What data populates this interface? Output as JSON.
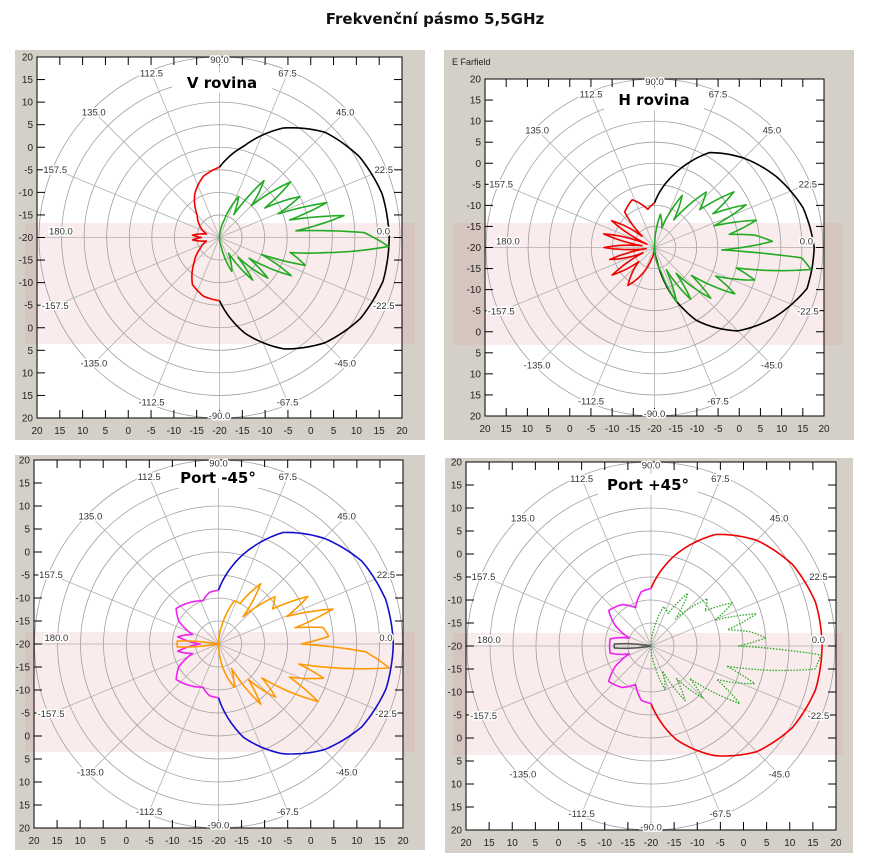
{
  "title": "Frekvenční pásmo 5,5GHz",
  "axis_ticks": [
    "20",
    "15",
    "10",
    "5",
    "0",
    "-5",
    "-10",
    "-15",
    "-20",
    "-15",
    "-10",
    "-5",
    "0",
    "5",
    "10",
    "15",
    "20"
  ],
  "angle_labels": [
    {
      "angle": 90,
      "text": "90.0"
    },
    {
      "angle": 67.5,
      "text": "67.5"
    },
    {
      "angle": 45,
      "text": "45.0"
    },
    {
      "angle": 22.5,
      "text": "22.5"
    },
    {
      "angle": 0,
      "text": "0.0"
    },
    {
      "angle": -22.5,
      "text": "-22.5"
    },
    {
      "angle": -45,
      "text": "-45.0"
    },
    {
      "angle": -67.5,
      "text": "-67.5"
    },
    {
      "angle": -90,
      "text": "-90.0"
    },
    {
      "angle": -112.5,
      "text": "-112.5"
    },
    {
      "angle": -135,
      "text": "-135.0"
    },
    {
      "angle": -157.5,
      "text": "-157.5"
    },
    {
      "angle": 180,
      "text": "180.0"
    },
    {
      "angle": 157.5,
      "text": "157.5"
    },
    {
      "angle": 135,
      "text": "135.0"
    },
    {
      "angle": 112.5,
      "text": "112.5"
    }
  ],
  "chart_data": [
    {
      "type": "polar",
      "title": "V rovina",
      "frame_label": "",
      "rlim": [
        -20,
        20
      ],
      "grid": true,
      "series": [
        {
          "color": "#000000",
          "style": "solid",
          "points": [
            [
              -90,
              -6
            ],
            [
              -75,
              2
            ],
            [
              -60,
              8.5
            ],
            [
              -45,
              13
            ],
            [
              -30,
              16
            ],
            [
              -15,
              17.5
            ],
            [
              0,
              17.6
            ],
            [
              15,
              17.3
            ],
            [
              30,
              15.8
            ],
            [
              45,
              13
            ],
            [
              60,
              8
            ],
            [
              75,
              1
            ],
            [
              90,
              -4.4
            ]
          ]
        },
        {
          "color": "#ee0000",
          "style": "solid",
          "points": [
            [
              90,
              -4.4
            ],
            [
              105,
              -6
            ],
            [
              120,
              -9
            ],
            [
              135,
              -13
            ],
            [
              150,
              -15
            ],
            [
              165,
              -17
            ],
            [
              175,
              -14
            ],
            [
              180,
              -16
            ],
            [
              185,
              -14
            ],
            [
              195,
              -17
            ],
            [
              210,
              -15
            ],
            [
              225,
              -12
            ],
            [
              240,
              -8
            ],
            [
              255,
              -6.5
            ],
            [
              270,
              -6
            ]
          ]
        },
        {
          "color": "#22aa22",
          "style": "solid",
          "points": [
            [
              -90,
              -20
            ],
            [
              -80,
              -18
            ],
            [
              -70,
              -12
            ],
            [
              -60,
              -16
            ],
            [
              -52,
              -8
            ],
            [
              -47,
              -14
            ],
            [
              -40,
              -6
            ],
            [
              -35,
              -12
            ],
            [
              -28,
              -2
            ],
            [
              -22,
              -10
            ],
            [
              -18,
              0
            ],
            [
              -12,
              -4
            ],
            [
              -8,
              4
            ],
            [
              -3,
              17.5
            ],
            [
              2,
              12
            ],
            [
              5,
              -3
            ],
            [
              10,
              8
            ],
            [
              14,
              -4
            ],
            [
              18,
              5
            ],
            [
              22,
              -6
            ],
            [
              27,
              0
            ],
            [
              33,
              -8
            ],
            [
              38,
              0
            ],
            [
              45,
              -10
            ],
            [
              52,
              -4
            ],
            [
              58,
              -14
            ],
            [
              65,
              -10
            ],
            [
              75,
              -16
            ],
            [
              85,
              -19
            ],
            [
              90,
              -20
            ]
          ]
        }
      ]
    },
    {
      "type": "polar",
      "title": "H rovina",
      "frame_label": "E Farfield",
      "rlim": [
        -20,
        20
      ],
      "grid": true,
      "series": [
        {
          "color": "#000000",
          "style": "solid",
          "points": [
            [
              90,
              -9.4
            ],
            [
              75,
              -2
            ],
            [
              60,
              6
            ],
            [
              45,
              10
            ],
            [
              30,
              13.5
            ],
            [
              15,
              16.5
            ],
            [
              0,
              17.9
            ],
            [
              -15,
              17.5
            ],
            [
              -30,
              13
            ],
            [
              -45,
              8
            ],
            [
              -60,
              0
            ],
            [
              -70,
              -8
            ],
            [
              -80,
              -17
            ],
            [
              -90,
              -20
            ]
          ]
        },
        {
          "color": "#ee0000",
          "style": "solid",
          "points": [
            [
              90,
              -9.4
            ],
            [
              100,
              -10.8
            ],
            [
              115,
              -7.5
            ],
            [
              130,
              -9
            ],
            [
              138,
              -16
            ],
            [
              148,
              -8
            ],
            [
              156,
              -18
            ],
            [
              165,
              -7.5
            ],
            [
              172,
              -17
            ],
            [
              180,
              -8
            ],
            [
              188,
              -18
            ],
            [
              195,
              -9
            ],
            [
              205,
              -17
            ],
            [
              213,
              -8
            ],
            [
              222,
              -15
            ],
            [
              235,
              -9
            ],
            [
              245,
              -13
            ],
            [
              255,
              -17
            ],
            [
              270,
              -20
            ]
          ]
        },
        {
          "color": "#22aa22",
          "style": "solid",
          "points": [
            [
              -90,
              -20
            ],
            [
              -75,
              -14
            ],
            [
              -68,
              -6
            ],
            [
              -62,
              -14
            ],
            [
              -55,
              -5
            ],
            [
              -50,
              -12
            ],
            [
              -42,
              -2
            ],
            [
              -37,
              -9
            ],
            [
              -30,
              2
            ],
            [
              -25,
              -4
            ],
            [
              -18,
              5
            ],
            [
              -14,
              0
            ],
            [
              -8,
              17.5
            ],
            [
              -4,
              15
            ],
            [
              -2,
              -4
            ],
            [
              3,
              8
            ],
            [
              7,
              4
            ],
            [
              10,
              -2
            ],
            [
              15,
              5
            ],
            [
              20,
              -5
            ],
            [
              25,
              4
            ],
            [
              30,
              -4
            ],
            [
              35,
              3
            ],
            [
              40,
              -6
            ],
            [
              47,
              -2
            ],
            [
              55,
              -12
            ],
            [
              62,
              -6
            ],
            [
              70,
              -15
            ],
            [
              80,
              -12
            ],
            [
              90,
              -20
            ]
          ]
        }
      ]
    },
    {
      "type": "polar",
      "title": "Port -45°",
      "frame_label": "",
      "rlim": [
        -20,
        20
      ],
      "grid": true,
      "series": [
        {
          "color": "#1010cc",
          "style": "solid",
          "points": [
            [
              -90,
              -8.3
            ],
            [
              -75,
              1
            ],
            [
              -60,
              7.5
            ],
            [
              -45,
              12.5
            ],
            [
              -30,
              16
            ],
            [
              -15,
              17.7
            ],
            [
              0,
              18
            ],
            [
              15,
              17.6
            ],
            [
              30,
              16
            ],
            [
              45,
              12.5
            ],
            [
              60,
              8
            ],
            [
              75,
              0
            ],
            [
              90,
              -8.3
            ]
          ]
        },
        {
          "color": "#ee22ee",
          "style": "solid",
          "points": [
            [
              90,
              -8.3
            ],
            [
              100,
              -8.6
            ],
            [
              110,
              -10
            ],
            [
              125,
              -9
            ],
            [
              140,
              -8
            ],
            [
              150,
              -10
            ],
            [
              160,
              -14
            ],
            [
              170,
              -11
            ],
            [
              180,
              -16
            ],
            [
              190,
              -11
            ],
            [
              200,
              -14
            ],
            [
              210,
              -10
            ],
            [
              220,
              -8
            ],
            [
              235,
              -9
            ],
            [
              250,
              -10
            ],
            [
              260,
              -8.6
            ],
            [
              270,
              -8.3
            ]
          ]
        },
        {
          "color": "#ff9900",
          "style": "solid",
          "points": [
            [
              -90,
              -20
            ],
            [
              -80,
              -15
            ],
            [
              -70,
              -10
            ],
            [
              -62,
              -14
            ],
            [
              -55,
              -4
            ],
            [
              -50,
              -10
            ],
            [
              -43,
              -3
            ],
            [
              -38,
              -8
            ],
            [
              -30,
              5
            ],
            [
              -25,
              -3
            ],
            [
              -18,
              4
            ],
            [
              -14,
              -2
            ],
            [
              -8,
              17.5
            ],
            [
              -3,
              12
            ],
            [
              0,
              -2
            ],
            [
              4,
              4
            ],
            [
              9,
              3
            ],
            [
              12,
              -3
            ],
            [
              17,
              6
            ],
            [
              22,
              -4
            ],
            [
              28,
              2
            ],
            [
              33,
              -6
            ],
            [
              40,
              -4
            ],
            [
              48,
              -12
            ],
            [
              55,
              -4
            ],
            [
              62,
              -10
            ],
            [
              70,
              -10
            ],
            [
              80,
              -16
            ],
            [
              90,
              -20
            ]
          ]
        },
        {
          "color": "#ff9900",
          "style": "solid",
          "points": [
            [
              170,
              -20
            ],
            [
              176,
              -11
            ],
            [
              184,
              -11
            ],
            [
              190,
              -20
            ]
          ]
        }
      ]
    },
    {
      "type": "polar",
      "title": "Port +45°",
      "frame_label": "",
      "rlim": [
        -20,
        20
      ],
      "grid": true,
      "series": [
        {
          "color": "#ee0000",
          "style": "solid",
          "points": [
            [
              -90,
              -7.5
            ],
            [
              -75,
              1
            ],
            [
              -60,
              7.5
            ],
            [
              -45,
              12.5
            ],
            [
              -30,
              15.5
            ],
            [
              -15,
              17
            ],
            [
              0,
              17.2
            ],
            [
              15,
              17
            ],
            [
              30,
              15.5
            ],
            [
              45,
              12.5
            ],
            [
              60,
              8
            ],
            [
              75,
              0.5
            ],
            [
              90,
              -7.5
            ]
          ]
        },
        {
          "color": "#ee22ee",
          "style": "solid",
          "points": [
            [
              90,
              -7.5
            ],
            [
              100,
              -8
            ],
            [
              112,
              -11
            ],
            [
              125,
              -9
            ],
            [
              140,
              -8
            ],
            [
              150,
              -11
            ],
            [
              160,
              -15
            ],
            [
              170,
              -11
            ],
            [
              180,
              -11
            ],
            [
              190,
              -11
            ],
            [
              200,
              -15
            ],
            [
              210,
              -11
            ],
            [
              220,
              -8
            ],
            [
              235,
              -9
            ],
            [
              248,
              -11
            ],
            [
              260,
              -8
            ],
            [
              270,
              -7.5
            ]
          ]
        },
        {
          "color": "#22aa22",
          "style": "dotted",
          "points": [
            [
              -90,
              -20
            ],
            [
              -80,
              -16
            ],
            [
              -72,
              -10
            ],
            [
              -65,
              -14
            ],
            [
              -58,
              -6
            ],
            [
              -52,
              -11
            ],
            [
              -45,
              -4
            ],
            [
              -40,
              -9
            ],
            [
              -33,
              3
            ],
            [
              -27,
              -4
            ],
            [
              -20,
              4
            ],
            [
              -15,
              -3
            ],
            [
              -8,
              16
            ],
            [
              -3,
              17
            ],
            [
              0,
              -1
            ],
            [
              4,
              5
            ],
            [
              8,
              2
            ],
            [
              12,
              -3
            ],
            [
              17,
              4
            ],
            [
              22,
              -5
            ],
            [
              28,
              0
            ],
            [
              33,
              -6
            ],
            [
              40,
              -4
            ],
            [
              48,
              -12
            ],
            [
              55,
              -6
            ],
            [
              62,
              -12
            ],
            [
              72,
              -11
            ],
            [
              82,
              -17
            ],
            [
              90,
              -20
            ]
          ]
        },
        {
          "color": "#555555",
          "style": "solid",
          "points": [
            [
              170,
              -20
            ],
            [
              177,
              -12
            ],
            [
              183,
              -12
            ],
            [
              190,
              -20
            ]
          ]
        }
      ]
    }
  ]
}
